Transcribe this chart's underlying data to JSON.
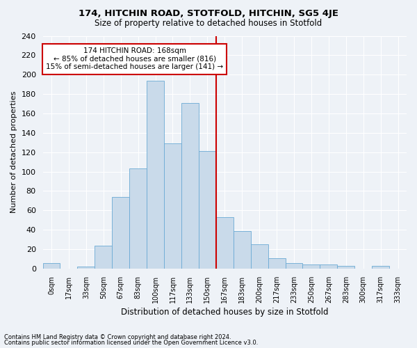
{
  "title": "174, HITCHIN ROAD, STOTFOLD, HITCHIN, SG5 4JE",
  "subtitle": "Size of property relative to detached houses in Stotfold",
  "xlabel": "Distribution of detached houses by size in Stotfold",
  "ylabel": "Number of detached properties",
  "categories": [
    "0sqm",
    "17sqm",
    "33sqm",
    "50sqm",
    "67sqm",
    "83sqm",
    "100sqm",
    "117sqm",
    "133sqm",
    "150sqm",
    "167sqm",
    "183sqm",
    "200sqm",
    "217sqm",
    "233sqm",
    "250sqm",
    "267sqm",
    "283sqm",
    "300sqm",
    "317sqm",
    "333sqm"
  ],
  "values": [
    6,
    0,
    2,
    24,
    74,
    103,
    194,
    129,
    171,
    121,
    53,
    39,
    25,
    11,
    6,
    4,
    4,
    3,
    0,
    3,
    0
  ],
  "bar_color": "#c9daea",
  "bar_edge_color": "#6aaad4",
  "vline_color": "#cc0000",
  "annotation_title": "174 HITCHIN ROAD: 168sqm",
  "annotation_line2": "← 85% of detached houses are smaller (816)",
  "annotation_line3": "15% of semi-detached houses are larger (141) →",
  "annotation_box_color": "#cc0000",
  "ylim": [
    0,
    240
  ],
  "yticks": [
    0,
    20,
    40,
    60,
    80,
    100,
    120,
    140,
    160,
    180,
    200,
    220,
    240
  ],
  "footnote1": "Contains HM Land Registry data © Crown copyright and database right 2024.",
  "footnote2": "Contains public sector information licensed under the Open Government Licence v3.0.",
  "bg_color": "#eef2f7",
  "grid_color": "#ffffff"
}
